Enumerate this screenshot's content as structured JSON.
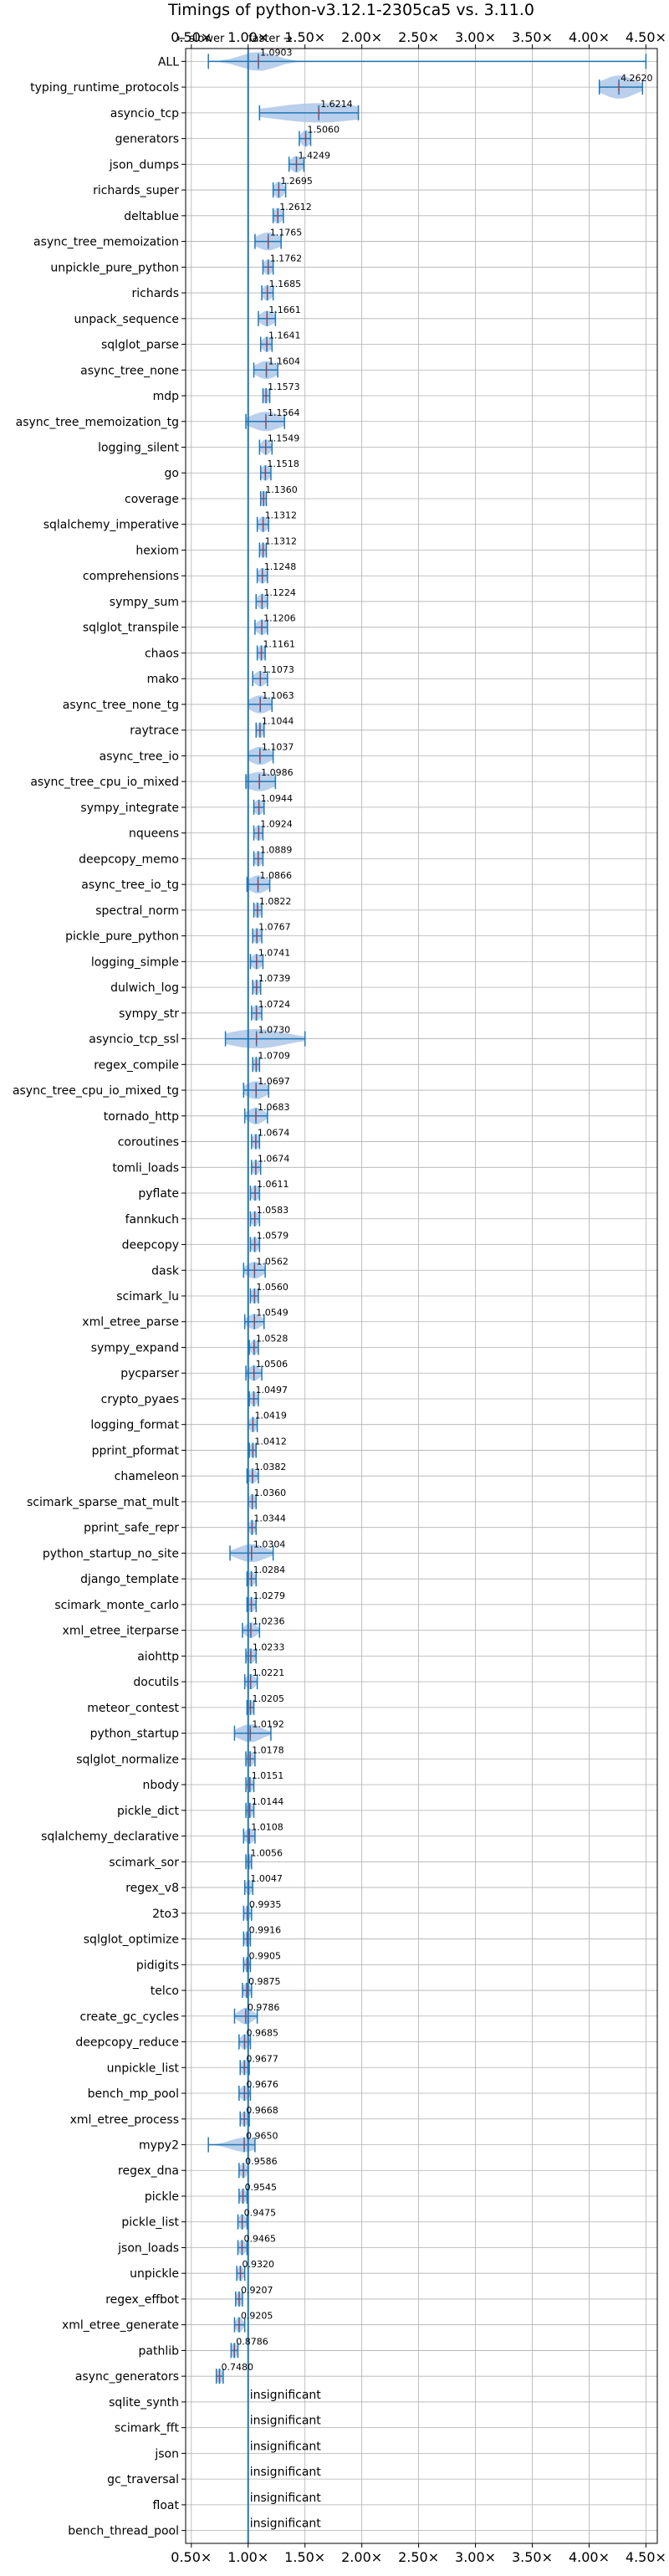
{
  "chart_data": {
    "type": "violin",
    "title": "Timings of python-v3.12.1-2305ca5 vs. 3.11.0",
    "direction_labels": {
      "slower": "← slower",
      "faster": "faster →"
    },
    "xlim": [
      0.45,
      4.6
    ],
    "x_ticks": [
      0.5,
      1.0,
      1.5,
      2.0,
      2.5,
      3.0,
      3.5,
      4.0,
      4.5
    ],
    "x_tick_labels": [
      "0.50×",
      "1.00×",
      "1.50×",
      "2.00×",
      "2.50×",
      "3.00×",
      "3.50×",
      "4.00×",
      "4.50×"
    ],
    "reference_x": 1.0,
    "grid": true,
    "insignificant_label": "insignificant",
    "colors": {
      "accent": "#1f77b4",
      "violin": "#aec7e8",
      "grid": "#b0b0b0",
      "mean": "#d62728"
    },
    "benchmarks": [
      {
        "name": "ALL",
        "value": 1.0903,
        "label": "1.0903",
        "lo": 0.65,
        "hi": 4.5,
        "spread": 0.15,
        "h": 0.75
      },
      {
        "name": "typing_runtime_protocols",
        "value": 4.262,
        "label": "4.2620",
        "lo": 4.09,
        "hi": 4.47,
        "spread": 0.14,
        "h": 0.9
      },
      {
        "name": "asyncio_tcp",
        "value": 1.6214,
        "label": "1.6214",
        "lo": 1.1,
        "hi": 1.97,
        "spread": 0.4,
        "h": 0.75
      },
      {
        "name": "generators",
        "value": 1.506,
        "label": "1.5060",
        "lo": 1.45,
        "hi": 1.55,
        "spread": 0.04,
        "h": 0.65
      },
      {
        "name": "json_dumps",
        "value": 1.4249,
        "label": "1.4249",
        "lo": 1.36,
        "hi": 1.49,
        "spread": 0.05,
        "h": 0.65
      },
      {
        "name": "richards_super",
        "value": 1.2695,
        "label": "1.2695",
        "lo": 1.22,
        "hi": 1.33,
        "spread": 0.04,
        "h": 0.65
      },
      {
        "name": "deltablue",
        "value": 1.2612,
        "label": "1.2612",
        "lo": 1.22,
        "hi": 1.31,
        "spread": 0.04,
        "h": 0.6
      },
      {
        "name": "async_tree_memoization",
        "value": 1.1765,
        "label": "1.1765",
        "lo": 1.06,
        "hi": 1.29,
        "spread": 0.1,
        "h": 0.7
      },
      {
        "name": "unpickle_pure_python",
        "value": 1.1762,
        "label": "1.1762",
        "lo": 1.13,
        "hi": 1.22,
        "spread": 0.04,
        "h": 0.6
      },
      {
        "name": "richards",
        "value": 1.1685,
        "label": "1.1685",
        "lo": 1.12,
        "hi": 1.22,
        "spread": 0.04,
        "h": 0.6
      },
      {
        "name": "unpack_sequence",
        "value": 1.1661,
        "label": "1.1661",
        "lo": 1.09,
        "hi": 1.24,
        "spread": 0.06,
        "h": 0.6
      },
      {
        "name": "sqlglot_parse",
        "value": 1.1641,
        "label": "1.1641",
        "lo": 1.11,
        "hi": 1.21,
        "spread": 0.04,
        "h": 0.6
      },
      {
        "name": "async_tree_none",
        "value": 1.1604,
        "label": "1.1604",
        "lo": 1.05,
        "hi": 1.26,
        "spread": 0.09,
        "h": 0.7
      },
      {
        "name": "mdp",
        "value": 1.1573,
        "label": "1.1573",
        "lo": 1.13,
        "hi": 1.19,
        "spread": 0.03,
        "h": 0.6
      },
      {
        "name": "async_tree_memoization_tg",
        "value": 1.1564,
        "label": "1.1564",
        "lo": 0.98,
        "hi": 1.32,
        "spread": 0.13,
        "h": 0.75
      },
      {
        "name": "logging_silent",
        "value": 1.1549,
        "label": "1.1549",
        "lo": 1.1,
        "hi": 1.21,
        "spread": 0.04,
        "h": 0.6
      },
      {
        "name": "go",
        "value": 1.1518,
        "label": "1.1518",
        "lo": 1.11,
        "hi": 1.2,
        "spread": 0.04,
        "h": 0.6
      },
      {
        "name": "coverage",
        "value": 1.136,
        "label": "1.1360",
        "lo": 1.11,
        "hi": 1.16,
        "spread": 0.025,
        "h": 0.6
      },
      {
        "name": "sqlalchemy_imperative",
        "value": 1.1312,
        "label": "1.1312",
        "lo": 1.08,
        "hi": 1.18,
        "spread": 0.04,
        "h": 0.6
      },
      {
        "name": "hexiom",
        "value": 1.1312,
        "label": "1.1312",
        "lo": 1.1,
        "hi": 1.16,
        "spread": 0.025,
        "h": 0.6
      },
      {
        "name": "comprehensions",
        "value": 1.1248,
        "label": "1.1248",
        "lo": 1.08,
        "hi": 1.17,
        "spread": 0.04,
        "h": 0.6
      },
      {
        "name": "sympy_sum",
        "value": 1.1224,
        "label": "1.1224",
        "lo": 1.07,
        "hi": 1.17,
        "spread": 0.04,
        "h": 0.6
      },
      {
        "name": "sqlglot_transpile",
        "value": 1.1206,
        "label": "1.1206",
        "lo": 1.06,
        "hi": 1.17,
        "spread": 0.045,
        "h": 0.6
      },
      {
        "name": "chaos",
        "value": 1.1161,
        "label": "1.1161",
        "lo": 1.08,
        "hi": 1.15,
        "spread": 0.03,
        "h": 0.6
      },
      {
        "name": "mako",
        "value": 1.1073,
        "label": "1.1073",
        "lo": 1.04,
        "hi": 1.17,
        "spread": 0.05,
        "h": 0.6
      },
      {
        "name": "async_tree_none_tg",
        "value": 1.1063,
        "label": "1.1063",
        "lo": 1.0,
        "hi": 1.21,
        "spread": 0.09,
        "h": 0.7
      },
      {
        "name": "raytrace",
        "value": 1.1044,
        "label": "1.1044",
        "lo": 1.07,
        "hi": 1.14,
        "spread": 0.03,
        "h": 0.6
      },
      {
        "name": "async_tree_io",
        "value": 1.1037,
        "label": "1.1037",
        "lo": 1.0,
        "hi": 1.22,
        "spread": 0.09,
        "h": 0.7
      },
      {
        "name": "async_tree_cpu_io_mixed",
        "value": 1.0986,
        "label": "1.0986",
        "lo": 0.98,
        "hi": 1.24,
        "spread": 0.12,
        "h": 0.75
      },
      {
        "name": "sympy_integrate",
        "value": 1.0944,
        "label": "1.0944",
        "lo": 1.05,
        "hi": 1.14,
        "spread": 0.04,
        "h": 0.6
      },
      {
        "name": "nqueens",
        "value": 1.0924,
        "label": "1.0924",
        "lo": 1.05,
        "hi": 1.13,
        "spread": 0.035,
        "h": 0.6
      },
      {
        "name": "deepcopy_memo",
        "value": 1.0889,
        "label": "1.0889",
        "lo": 1.05,
        "hi": 1.13,
        "spread": 0.035,
        "h": 0.6
      },
      {
        "name": "async_tree_io_tg",
        "value": 1.0866,
        "label": "1.0866",
        "lo": 0.99,
        "hi": 1.19,
        "spread": 0.08,
        "h": 0.7
      },
      {
        "name": "spectral_norm",
        "value": 1.0822,
        "label": "1.0822",
        "lo": 1.05,
        "hi": 1.12,
        "spread": 0.03,
        "h": 0.6
      },
      {
        "name": "pickle_pure_python",
        "value": 1.0767,
        "label": "1.0767",
        "lo": 1.04,
        "hi": 1.12,
        "spread": 0.035,
        "h": 0.6
      },
      {
        "name": "logging_simple",
        "value": 1.0741,
        "label": "1.0741",
        "lo": 1.02,
        "hi": 1.13,
        "spread": 0.045,
        "h": 0.6
      },
      {
        "name": "dulwich_log",
        "value": 1.0739,
        "label": "1.0739",
        "lo": 1.04,
        "hi": 1.11,
        "spread": 0.03,
        "h": 0.6
      },
      {
        "name": "sympy_str",
        "value": 1.0724,
        "label": "1.0724",
        "lo": 1.03,
        "hi": 1.12,
        "spread": 0.04,
        "h": 0.6
      },
      {
        "name": "asyncio_tcp_ssl",
        "value": 1.073,
        "label": "1.0730",
        "lo": 0.8,
        "hi": 1.5,
        "spread": 0.25,
        "h": 0.75
      },
      {
        "name": "regex_compile",
        "value": 1.0709,
        "label": "1.0709",
        "lo": 1.04,
        "hi": 1.1,
        "spread": 0.025,
        "h": 0.6
      },
      {
        "name": "async_tree_cpu_io_mixed_tg",
        "value": 1.0697,
        "label": "1.0697",
        "lo": 0.96,
        "hi": 1.18,
        "spread": 0.09,
        "h": 0.7
      },
      {
        "name": "tornado_http",
        "value": 1.0683,
        "label": "1.0683",
        "lo": 0.97,
        "hi": 1.17,
        "spread": 0.07,
        "h": 0.65
      },
      {
        "name": "coroutines",
        "value": 1.0674,
        "label": "1.0674",
        "lo": 1.03,
        "hi": 1.1,
        "spread": 0.03,
        "h": 0.6
      },
      {
        "name": "tomli_loads",
        "value": 1.0674,
        "label": "1.0674",
        "lo": 1.03,
        "hi": 1.11,
        "spread": 0.03,
        "h": 0.6
      },
      {
        "name": "pyflate",
        "value": 1.0611,
        "label": "1.0611",
        "lo": 1.02,
        "hi": 1.1,
        "spread": 0.035,
        "h": 0.6
      },
      {
        "name": "fannkuch",
        "value": 1.0583,
        "label": "1.0583",
        "lo": 1.02,
        "hi": 1.1,
        "spread": 0.03,
        "h": 0.6
      },
      {
        "name": "deepcopy",
        "value": 1.0579,
        "label": "1.0579",
        "lo": 1.02,
        "hi": 1.1,
        "spread": 0.03,
        "h": 0.6
      },
      {
        "name": "dask",
        "value": 1.0562,
        "label": "1.0562",
        "lo": 0.96,
        "hi": 1.15,
        "spread": 0.07,
        "h": 0.65
      },
      {
        "name": "scimark_lu",
        "value": 1.056,
        "label": "1.0560",
        "lo": 1.02,
        "hi": 1.09,
        "spread": 0.03,
        "h": 0.6
      },
      {
        "name": "xml_etree_parse",
        "value": 1.0549,
        "label": "1.0549",
        "lo": 0.97,
        "hi": 1.14,
        "spread": 0.06,
        "h": 0.6
      },
      {
        "name": "sympy_expand",
        "value": 1.0528,
        "label": "1.0528",
        "lo": 1.01,
        "hi": 1.09,
        "spread": 0.03,
        "h": 0.6
      },
      {
        "name": "pycparser",
        "value": 1.0506,
        "label": "1.0506",
        "lo": 0.98,
        "hi": 1.12,
        "spread": 0.05,
        "h": 0.6
      },
      {
        "name": "crypto_pyaes",
        "value": 1.0497,
        "label": "1.0497",
        "lo": 1.01,
        "hi": 1.09,
        "spread": 0.03,
        "h": 0.6
      },
      {
        "name": "logging_format",
        "value": 1.0419,
        "label": "1.0419",
        "lo": 1.0,
        "hi": 1.08,
        "spread": 0.03,
        "h": 0.6
      },
      {
        "name": "pprint_pformat",
        "value": 1.0412,
        "label": "1.0412",
        "lo": 1.01,
        "hi": 1.07,
        "spread": 0.025,
        "h": 0.6
      },
      {
        "name": "chameleon",
        "value": 1.0382,
        "label": "1.0382",
        "lo": 0.99,
        "hi": 1.09,
        "spread": 0.035,
        "h": 0.6
      },
      {
        "name": "scimark_sparse_mat_mult",
        "value": 1.036,
        "label": "1.0360",
        "lo": 1.0,
        "hi": 1.07,
        "spread": 0.03,
        "h": 0.6
      },
      {
        "name": "pprint_safe_repr",
        "value": 1.0344,
        "label": "1.0344",
        "lo": 1.0,
        "hi": 1.07,
        "spread": 0.025,
        "h": 0.6
      },
      {
        "name": "python_startup_no_site",
        "value": 1.0304,
        "label": "1.0304",
        "lo": 0.84,
        "hi": 1.22,
        "spread": 0.12,
        "h": 0.7
      },
      {
        "name": "django_template",
        "value": 1.0284,
        "label": "1.0284",
        "lo": 0.99,
        "hi": 1.07,
        "spread": 0.03,
        "h": 0.6
      },
      {
        "name": "scimark_monte_carlo",
        "value": 1.0279,
        "label": "1.0279",
        "lo": 0.99,
        "hi": 1.07,
        "spread": 0.03,
        "h": 0.6
      },
      {
        "name": "xml_etree_iterparse",
        "value": 1.0236,
        "label": "1.0236",
        "lo": 0.95,
        "hi": 1.1,
        "spread": 0.05,
        "h": 0.6
      },
      {
        "name": "aiohttp",
        "value": 1.0233,
        "label": "1.0233",
        "lo": 0.98,
        "hi": 1.07,
        "spread": 0.035,
        "h": 0.6
      },
      {
        "name": "docutils",
        "value": 1.0221,
        "label": "1.0221",
        "lo": 0.97,
        "hi": 1.08,
        "spread": 0.04,
        "h": 0.6
      },
      {
        "name": "meteor_contest",
        "value": 1.0205,
        "label": "1.0205",
        "lo": 0.99,
        "hi": 1.05,
        "spread": 0.025,
        "h": 0.6
      },
      {
        "name": "python_startup",
        "value": 1.0192,
        "label": "1.0192",
        "lo": 0.88,
        "hi": 1.2,
        "spread": 0.1,
        "h": 0.7
      },
      {
        "name": "sqlglot_normalize",
        "value": 1.0178,
        "label": "1.0178",
        "lo": 0.98,
        "hi": 1.06,
        "spread": 0.03,
        "h": 0.6
      },
      {
        "name": "nbody",
        "value": 1.0151,
        "label": "1.0151",
        "lo": 0.98,
        "hi": 1.05,
        "spread": 0.025,
        "h": 0.6
      },
      {
        "name": "pickle_dict",
        "value": 1.0144,
        "label": "1.0144",
        "lo": 0.98,
        "hi": 1.05,
        "spread": 0.025,
        "h": 0.6
      },
      {
        "name": "sqlalchemy_declarative",
        "value": 1.0108,
        "label": "1.0108",
        "lo": 0.96,
        "hi": 1.06,
        "spread": 0.04,
        "h": 0.6
      },
      {
        "name": "scimark_sor",
        "value": 1.0056,
        "label": "1.0056",
        "lo": 0.98,
        "hi": 1.03,
        "spread": 0.02,
        "h": 0.6
      },
      {
        "name": "regex_v8",
        "value": 1.0047,
        "label": "1.0047",
        "lo": 0.97,
        "hi": 1.04,
        "spread": 0.025,
        "h": 0.6
      },
      {
        "name": "2to3",
        "value": 0.9935,
        "label": "0.9935",
        "lo": 0.96,
        "hi": 1.03,
        "spread": 0.025,
        "h": 0.6
      },
      {
        "name": "sqlglot_optimize",
        "value": 0.9916,
        "label": "0.9916",
        "lo": 0.96,
        "hi": 1.02,
        "spread": 0.025,
        "h": 0.6
      },
      {
        "name": "pidigits",
        "value": 0.9905,
        "label": "0.9905",
        "lo": 0.96,
        "hi": 1.02,
        "spread": 0.02,
        "h": 0.6
      },
      {
        "name": "telco",
        "value": 0.9875,
        "label": "0.9875",
        "lo": 0.95,
        "hi": 1.03,
        "spread": 0.03,
        "h": 0.6
      },
      {
        "name": "create_gc_cycles",
        "value": 0.9786,
        "label": "0.9786",
        "lo": 0.88,
        "hi": 1.08,
        "spread": 0.06,
        "h": 0.65
      },
      {
        "name": "deepcopy_reduce",
        "value": 0.9685,
        "label": "0.9685",
        "lo": 0.92,
        "hi": 1.02,
        "spread": 0.035,
        "h": 0.6
      },
      {
        "name": "unpickle_list",
        "value": 0.9677,
        "label": "0.9677",
        "lo": 0.93,
        "hi": 1.01,
        "spread": 0.03,
        "h": 0.6
      },
      {
        "name": "bench_mp_pool",
        "value": 0.9676,
        "label": "0.9676",
        "lo": 0.92,
        "hi": 1.02,
        "spread": 0.035,
        "h": 0.6
      },
      {
        "name": "xml_etree_process",
        "value": 0.9668,
        "label": "0.9668",
        "lo": 0.93,
        "hi": 1.01,
        "spread": 0.03,
        "h": 0.6
      },
      {
        "name": "mypy2",
        "value": 0.965,
        "label": "0.9650",
        "lo": 0.65,
        "hi": 1.06,
        "spread": 0.12,
        "h": 0.55
      },
      {
        "name": "regex_dna",
        "value": 0.9586,
        "label": "0.9586",
        "lo": 0.92,
        "hi": 1.0,
        "spread": 0.03,
        "h": 0.6
      },
      {
        "name": "pickle",
        "value": 0.9545,
        "label": "0.9545",
        "lo": 0.92,
        "hi": 0.99,
        "spread": 0.025,
        "h": 0.6
      },
      {
        "name": "pickle_list",
        "value": 0.9475,
        "label": "0.9475",
        "lo": 0.91,
        "hi": 0.99,
        "spread": 0.03,
        "h": 0.6
      },
      {
        "name": "json_loads",
        "value": 0.9465,
        "label": "0.9465",
        "lo": 0.91,
        "hi": 0.99,
        "spread": 0.03,
        "h": 0.6
      },
      {
        "name": "unpickle",
        "value": 0.932,
        "label": "0.9320",
        "lo": 0.9,
        "hi": 0.97,
        "spread": 0.025,
        "h": 0.6
      },
      {
        "name": "regex_effbot",
        "value": 0.9207,
        "label": "0.9207",
        "lo": 0.89,
        "hi": 0.95,
        "spread": 0.025,
        "h": 0.6
      },
      {
        "name": "xml_etree_generate",
        "value": 0.9205,
        "label": "0.9205",
        "lo": 0.88,
        "hi": 0.97,
        "spread": 0.03,
        "h": 0.6
      },
      {
        "name": "pathlib",
        "value": 0.8786,
        "label": "0.8786",
        "lo": 0.85,
        "hi": 0.91,
        "spread": 0.025,
        "h": 0.6
      },
      {
        "name": "async_generators",
        "value": 0.748,
        "label": "0.7480",
        "lo": 0.72,
        "hi": 0.78,
        "spread": 0.025,
        "h": 0.6
      },
      {
        "name": "sqlite_synth",
        "insignificant": true
      },
      {
        "name": "scimark_fft",
        "insignificant": true
      },
      {
        "name": "json",
        "insignificant": true
      },
      {
        "name": "gc_traversal",
        "insignificant": true
      },
      {
        "name": "float",
        "insignificant": true
      },
      {
        "name": "bench_thread_pool",
        "insignificant": true
      }
    ]
  }
}
